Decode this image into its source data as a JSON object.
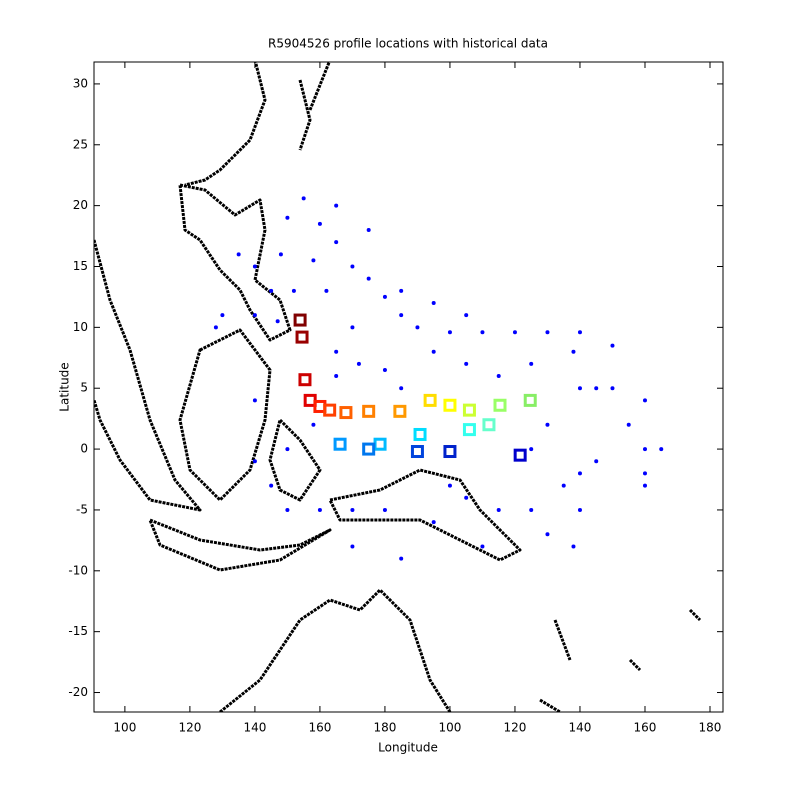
{
  "chart_data": {
    "type": "scatter",
    "title": "R5904526 profile locations with historical data",
    "x_label": "Longitude",
    "y_label": "Latitude",
    "xlim": [
      90.5,
      284
    ],
    "ylim": [
      -21.6,
      31.8
    ],
    "xticks": [
      100,
      120,
      140,
      160,
      180,
      {
        "value": 200,
        "label": "100"
      },
      {
        "value": 220,
        "label": "120"
      },
      {
        "value": 240,
        "label": "140"
      },
      {
        "value": 260,
        "label": "160"
      },
      {
        "value": 280,
        "label": "180"
      }
    ],
    "yticks": [
      -20,
      -15,
      -10,
      -5,
      0,
      5,
      10,
      15,
      20,
      25,
      30
    ],
    "series": [
      {
        "color": "#0000ff",
        "marker": "dot",
        "x": [
          155,
          150,
          160,
          165,
          148,
          158,
          170,
          175,
          145,
          152,
          162,
          180,
          185,
          190,
          140,
          147,
          200,
          210,
          220,
          230,
          240,
          250,
          195,
          205,
          225,
          238,
          165,
          172,
          180,
          185,
          240,
          245,
          250,
          260,
          260,
          265,
          255,
          260,
          260,
          240,
          240,
          238,
          230,
          225,
          215,
          205,
          200,
          210,
          195,
          180,
          170,
          160,
          150,
          145,
          140,
          150,
          158,
          165,
          170,
          175,
          165,
          185,
          195,
          205,
          215,
          230,
          245,
          235,
          225,
          170,
          185,
          140,
          130,
          128,
          135,
          140
        ],
        "y": [
          20.6,
          19,
          18.5,
          17,
          16,
          15.5,
          15,
          14,
          13,
          13,
          13,
          12.5,
          11,
          10,
          11,
          10.5,
          9.6,
          9.6,
          9.6,
          9.6,
          9.6,
          8.5,
          8,
          7,
          7,
          8,
          8,
          7,
          6.5,
          5,
          5,
          5,
          5,
          4,
          0,
          0,
          2,
          -2,
          -3,
          -2,
          -5,
          -8,
          -7,
          -5,
          -5,
          -4,
          -3,
          -8,
          -6,
          -5,
          -5,
          -5,
          -5,
          -3,
          -1,
          0,
          2,
          6,
          10,
          18,
          20,
          13,
          12,
          11,
          6,
          2,
          -1,
          -3,
          0,
          -8,
          -9,
          4,
          11,
          10,
          16,
          15
        ]
      },
      {
        "marker": "square",
        "colors": [
          "#800000",
          "#990000",
          "#cc0000",
          "#e00000",
          "#ff2000",
          "#ff4000",
          "#ff6000",
          "#ff8000",
          "#ff9900",
          "#ffdd00",
          "#ffff00",
          "#ccff33",
          "#99ff66",
          "#88ee66",
          "#66ffcc",
          "#33ffee",
          "#00ddff",
          "#00bbff",
          "#0099ff",
          "#0077ee",
          "#0044dd",
          "#0022cc",
          "#0000cc"
        ],
        "x": [
          153.9,
          154.5,
          155.4,
          157.0,
          160.0,
          163.0,
          168.0,
          175.0,
          184.6,
          193.9,
          200.0,
          206.0,
          215.4,
          224.7,
          212.0,
          206.0,
          190.8,
          178.5,
          166.2,
          175.0,
          190.0,
          200.0,
          221.6
        ],
        "y": [
          10.6,
          9.2,
          5.7,
          4.0,
          3.5,
          3.2,
          3.0,
          3.1,
          3.1,
          4.0,
          3.6,
          3.2,
          3.6,
          4.0,
          2.0,
          1.6,
          1.2,
          0.4,
          0.4,
          0.0,
          -0.2,
          -0.2,
          -0.5
        ]
      }
    ]
  }
}
